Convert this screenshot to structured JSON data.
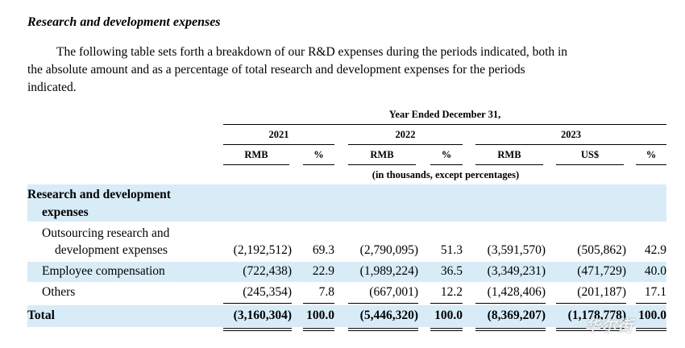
{
  "section_title": "Research and development expenses",
  "intro": {
    "line1": "The following table sets forth a breakdown of our R&D expenses during the periods indicated, both in",
    "line2": "the absolute amount and as a percentage of total research and development expenses for the periods",
    "line3": "indicated."
  },
  "table": {
    "period_header": "Year Ended December 31,",
    "years": [
      "2021",
      "2022",
      "2023"
    ],
    "columns": [
      "RMB",
      "%",
      "RMB",
      "%",
      "RMB",
      "US$",
      "%"
    ],
    "unit_note": "(in thousands, except percentages)",
    "group_label_line1": "Research and development",
    "group_label_line2": "expenses",
    "rows": [
      {
        "label_line1": "Outsourcing research and",
        "label_line2": "development expenses",
        "values": [
          "(2,192,512)",
          "69.3",
          "(2,790,095)",
          "51.3",
          "(3,591,570)",
          "(505,862)",
          "42.9"
        ]
      },
      {
        "label": "Employee compensation",
        "values": [
          "(722,438)",
          "22.9",
          "(1,989,224)",
          "36.5",
          "(3,349,231)",
          "(471,729)",
          "40.0"
        ]
      },
      {
        "label": "Others",
        "values": [
          "(245,354)",
          "7.8",
          "(667,001)",
          "12.2",
          "(1,428,406)",
          "(201,187)",
          "17.1"
        ]
      }
    ],
    "total": {
      "label": "Total",
      "values": [
        "(3,160,304)",
        "100.0",
        "(5,446,320)",
        "100.0",
        "(8,369,207)",
        "(1,178,778)",
        "100.0"
      ]
    }
  },
  "watermark": "华尔街",
  "colors": {
    "band": "#d7ecf7"
  }
}
